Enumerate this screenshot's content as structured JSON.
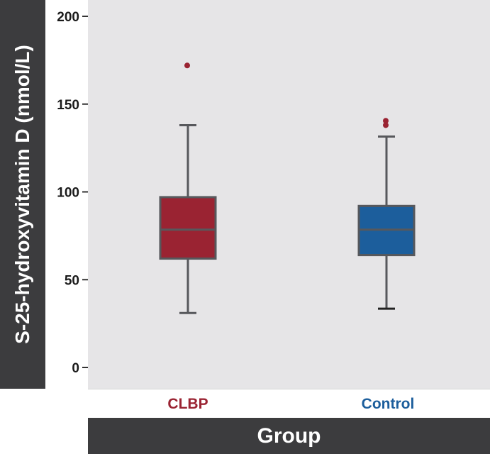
{
  "chart_data": {
    "type": "box",
    "title": "",
    "xlabel": "Group",
    "ylabel": "S-25-hydroxyvitamin D (nmol/L)",
    "ylim": [
      0,
      200
    ],
    "yticks": [
      0,
      50,
      100,
      150,
      200
    ],
    "grid": false,
    "categories": [
      "CLBP",
      "Control"
    ],
    "boxes": [
      {
        "category": "CLBP",
        "color": "#9a2332",
        "whisker_low": 31,
        "q1": 62,
        "median": 78.5,
        "q3": 97,
        "whisker_high": 138,
        "outliers": [
          172
        ]
      },
      {
        "category": "Control",
        "color": "#1c5e9c",
        "whisker_low": 33.5,
        "q1": 64,
        "median": 78.5,
        "q3": 92,
        "whisker_high": 131.5,
        "outliers": [
          138,
          140.5
        ]
      }
    ]
  },
  "colors": {
    "panel_background": "#e6e5e7",
    "label_bar": "#3c3c3e",
    "box_outline": "#57585c",
    "outlier": "#9a2332"
  }
}
